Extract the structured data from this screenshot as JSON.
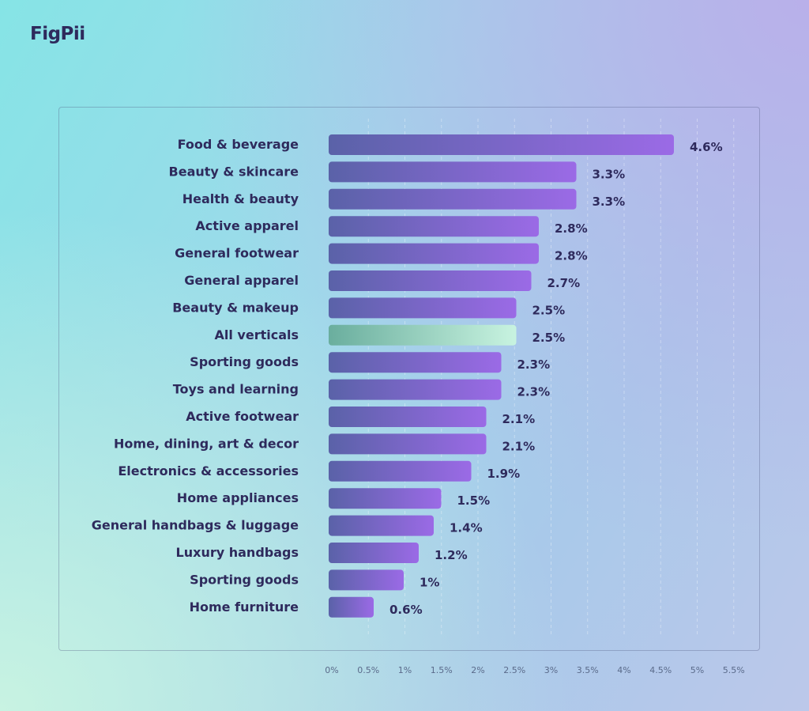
{
  "brand": {
    "logo": "FigPii"
  },
  "chart_data": {
    "type": "bar",
    "orientation": "horizontal",
    "title": "",
    "xlabel": "",
    "ylabel": "",
    "xlim": [
      0,
      5.5
    ],
    "x_ticks": [
      "0%",
      "0.5%",
      "1%",
      "1.5%",
      "2%",
      "2.5%",
      "3%",
      "3.5%",
      "4%",
      "4.5%",
      "5%",
      "5.5%"
    ],
    "x_tick_values": [
      0,
      0.5,
      1,
      1.5,
      2,
      2.5,
      3,
      3.5,
      4,
      4.5,
      5,
      5.5
    ],
    "grid": "vertical dashed",
    "categories": [
      "Food & beverage",
      "Beauty & skincare",
      "Health & beauty",
      "Active apparel",
      "General footwear",
      "General apparel",
      "Beauty & makeup",
      "All verticals",
      "Sporting goods",
      "Toys and learning",
      "Active footwear",
      "Home, dining, art & decor",
      "Electronics & accessories",
      "Home appliances",
      "General handbags & luggage",
      "Luxury handbags",
      "Sporting goods",
      "Home furniture"
    ],
    "values": [
      4.6,
      3.3,
      3.3,
      2.8,
      2.8,
      2.7,
      2.5,
      2.5,
      2.3,
      2.3,
      2.1,
      2.1,
      1.9,
      1.5,
      1.4,
      1.2,
      1,
      0.6
    ],
    "value_labels": [
      "4.6%",
      "3.3%",
      "3.3%",
      "2.8%",
      "2.8%",
      "2.7%",
      "2.5%",
      "2.5%",
      "2.3%",
      "2.3%",
      "2.1%",
      "2.1%",
      "1.9%",
      "1.5%",
      "1.4%",
      "1.2%",
      "1%",
      "0.6%"
    ],
    "highlight_category": "All verticals",
    "colors": {
      "bar_start": "#5a62a8",
      "bar_end": "#9b6ae6",
      "highlight_start": "#6aae9e",
      "highlight_end": "#c8f3e0",
      "text": "#2e2a5c"
    }
  }
}
